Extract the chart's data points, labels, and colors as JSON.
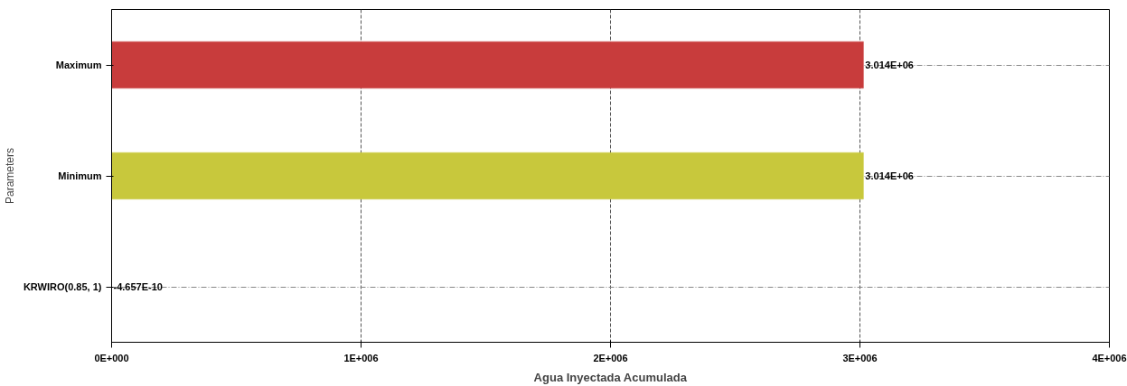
{
  "chart_data": {
    "type": "bar",
    "orientation": "horizontal",
    "xlabel": "Agua Inyectada Acumulada",
    "ylabel": "Parameters",
    "categories": [
      "Maximum",
      "Minimum",
      "KRWIRO(0.85, 1)"
    ],
    "values": [
      3014000,
      3014000,
      -4.657e-10
    ],
    "colors": [
      "#c83c3c",
      "#c8c83c",
      "#c8c83c"
    ],
    "value_labels": [
      "3.014E+06",
      "3.014E+06",
      "-4.657E-10"
    ],
    "xlim": [
      -1e-09,
      4000000
    ],
    "xticks": [
      {
        "value": 0,
        "label": "0E+000"
      },
      {
        "value": 1000000,
        "label": "1E+006"
      },
      {
        "value": 2000000,
        "label": "2E+006"
      },
      {
        "value": 3000000,
        "label": "3E+006"
      },
      {
        "value": 4000000,
        "label": "4E+006"
      }
    ],
    "grid": true
  }
}
